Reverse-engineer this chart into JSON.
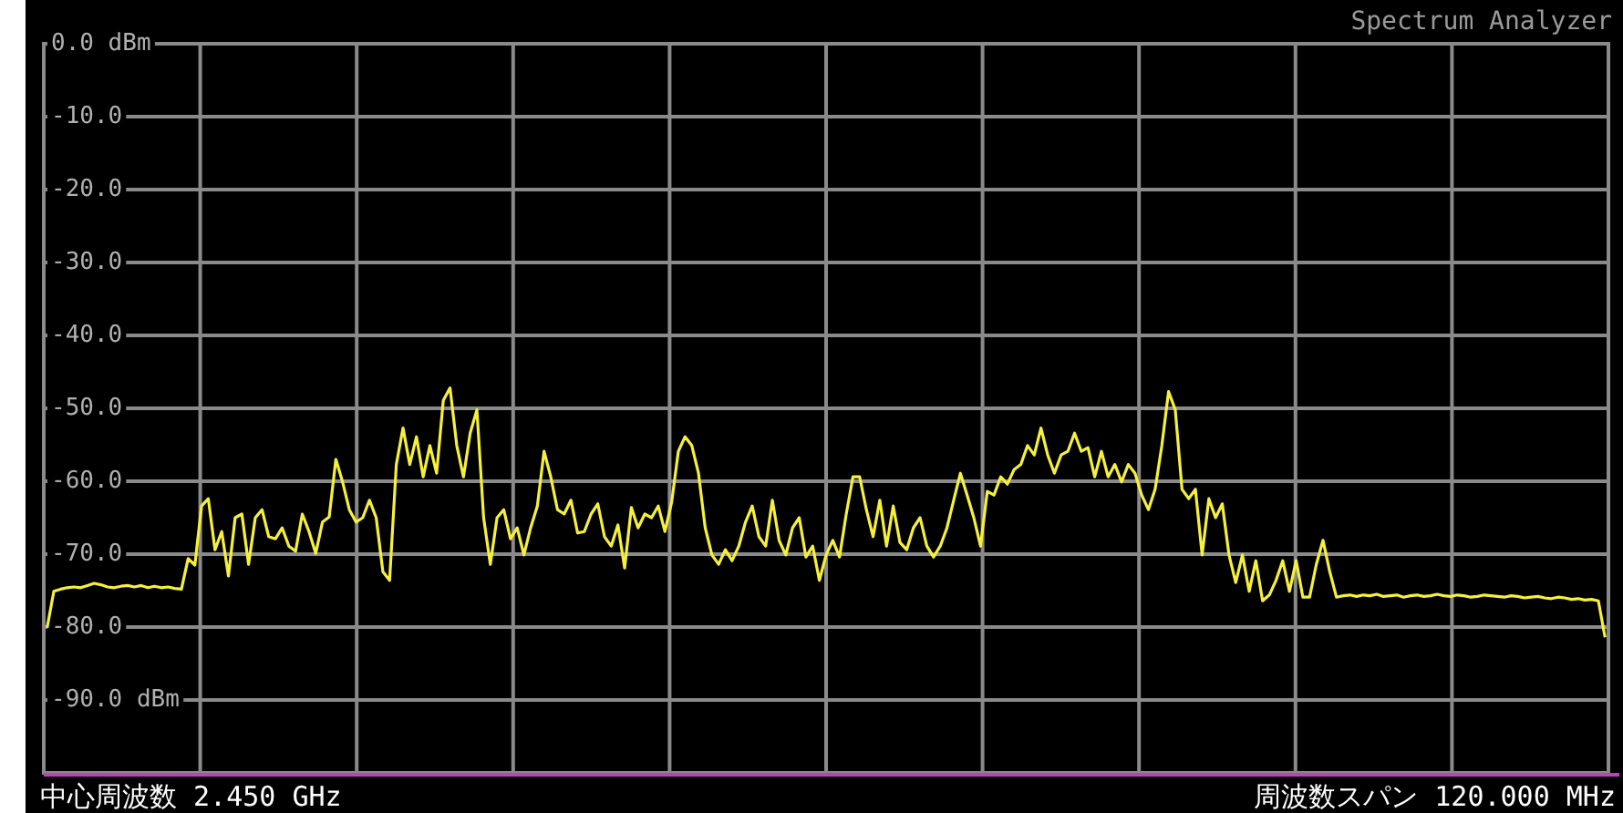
{
  "chart_data": {
    "type": "line",
    "title": "Spectrum Analyzer",
    "annotations": [
      "中心周波数 2.450 GHz",
      "周波数スパン 120.000 MHz"
    ],
    "categories": [
      null,
      null,
      null,
      null,
      null,
      null,
      null,
      null,
      null,
      null,
      null,
      null,
      null,
      null,
      null,
      null,
      null,
      null,
      null,
      null,
      null,
      null,
      null,
      null,
      null,
      null,
      null,
      null,
      null,
      null,
      null,
      null,
      null,
      null,
      null,
      null,
      null,
      null,
      null,
      null,
      null,
      null,
      null,
      null,
      null,
      null,
      null,
      null,
      null,
      null,
      null,
      null,
      null,
      null,
      null,
      null,
      null,
      null,
      null,
      null,
      null,
      null,
      null,
      null,
      null,
      null,
      null,
      null,
      null,
      null,
      null,
      null,
      null,
      null,
      null,
      null,
      null,
      null,
      null,
      null,
      null,
      null,
      null,
      null,
      null,
      null,
      null,
      null,
      null,
      null,
      null,
      null,
      null,
      null,
      null,
      null,
      null,
      null,
      null,
      null,
      null,
      null,
      null,
      null,
      null,
      null,
      null,
      null,
      null,
      null,
      null,
      null,
      null,
      null,
      null,
      null,
      null,
      null,
      null,
      null,
      null,
      null,
      null,
      null,
      null,
      null,
      null,
      null,
      null,
      null,
      null,
      null,
      null,
      null,
      null,
      null,
      null,
      null,
      null,
      null,
      null,
      null,
      null,
      null,
      null,
      null,
      null,
      null,
      null,
      null,
      null,
      null,
      null,
      null,
      null,
      null,
      null,
      null,
      null,
      null,
      null,
      null,
      null,
      null,
      null,
      null,
      null,
      null,
      null,
      null,
      null,
      null,
      null,
      null,
      null,
      null,
      null,
      null,
      null,
      null,
      null,
      null,
      null,
      null,
      null,
      null,
      null,
      null,
      null,
      null,
      null,
      null,
      null,
      null,
      null,
      null,
      null,
      null,
      null,
      null,
      null,
      null,
      null,
      null,
      null,
      null,
      null,
      null,
      null,
      null,
      null,
      null,
      null,
      null,
      null,
      null,
      null,
      null,
      null,
      null,
      null,
      null,
      null,
      null,
      null,
      null,
      null,
      null,
      null,
      null,
      null,
      null,
      null
    ],
    "series": [
      {
        "color": "#f5f03c",
        "values": [
          -80.1,
          -75.1,
          -74.8,
          -74.6,
          -74.5,
          -74.6,
          -74.3,
          -74.0,
          -74.2,
          -74.5,
          -74.6,
          -74.4,
          -74.3,
          -74.5,
          -74.3,
          -74.6,
          -74.4,
          -74.6,
          -74.5,
          -74.7,
          -74.8,
          -70.6,
          -71.5,
          -63.4,
          -62.4,
          -69.4,
          -66.9,
          -73.0,
          -65.0,
          -64.5,
          -71.4,
          -65.0,
          -63.9,
          -67.6,
          -67.9,
          -66.4,
          -68.9,
          -69.6,
          -64.5,
          -66.9,
          -69.9,
          -65.6,
          -64.9,
          -57.0,
          -60.1,
          -63.9,
          -65.6,
          -65.0,
          -62.6,
          -65.0,
          -72.4,
          -73.6,
          -57.7,
          -52.7,
          -57.7,
          -53.9,
          -59.4,
          -55.1,
          -58.9,
          -48.9,
          -47.2,
          -55.1,
          -59.4,
          -53.4,
          -50.2,
          -65.0,
          -71.4,
          -65.0,
          -63.9,
          -67.9,
          -66.4,
          -70.1,
          -66.4,
          -63.4,
          -55.9,
          -59.4,
          -63.9,
          -64.5,
          -62.6,
          -67.1,
          -66.9,
          -64.5,
          -63.1,
          -67.6,
          -68.9,
          -66.0,
          -71.9,
          -63.6,
          -66.4,
          -64.5,
          -65.0,
          -63.4,
          -66.9,
          -62.9,
          -55.9,
          -53.9,
          -55.1,
          -58.9,
          -66.4,
          -70.1,
          -71.4,
          -69.4,
          -70.9,
          -68.9,
          -65.6,
          -63.4,
          -67.6,
          -68.9,
          -62.6,
          -68.1,
          -70.1,
          -66.4,
          -65.0,
          -70.4,
          -68.9,
          -73.6,
          -70.1,
          -68.1,
          -70.4,
          -64.5,
          -59.4,
          -59.4,
          -63.9,
          -67.6,
          -62.6,
          -68.9,
          -63.4,
          -68.4,
          -69.4,
          -66.4,
          -65.0,
          -68.9,
          -70.4,
          -68.9,
          -66.4,
          -62.6,
          -58.9,
          -61.9,
          -65.0,
          -68.9,
          -61.4,
          -61.9,
          -59.4,
          -60.4,
          -58.4,
          -57.7,
          -55.1,
          -56.4,
          -52.7,
          -56.4,
          -58.9,
          -56.4,
          -55.9,
          -53.4,
          -55.9,
          -55.4,
          -59.4,
          -55.9,
          -59.4,
          -57.7,
          -60.1,
          -57.7,
          -58.9,
          -61.9,
          -63.9,
          -61.1,
          -55.1,
          -47.7,
          -50.2,
          -61.1,
          -62.4,
          -61.1,
          -70.1,
          -62.4,
          -65.0,
          -63.1,
          -70.1,
          -73.9,
          -70.1,
          -75.1,
          -70.9,
          -76.4,
          -75.6,
          -73.6,
          -70.9,
          -75.1,
          -70.9,
          -75.9,
          -75.9,
          -71.4,
          -68.1,
          -72.4,
          -75.9,
          -75.7,
          -75.6,
          -75.8,
          -75.6,
          -75.7,
          -75.5,
          -75.8,
          -75.7,
          -75.6,
          -75.9,
          -75.7,
          -75.6,
          -75.8,
          -75.7,
          -75.5,
          -75.7,
          -75.8,
          -75.6,
          -75.7,
          -75.9,
          -75.8,
          -75.6,
          -75.7,
          -75.8,
          -75.9,
          -75.7,
          -75.8,
          -76.0,
          -75.9,
          -75.8,
          -76.0,
          -76.1,
          -75.9,
          -76.0,
          -76.2,
          -76.1,
          -76.3,
          -76.2,
          -76.4,
          -81.4
        ]
      }
    ],
    "ylim": [
      -100,
      0
    ],
    "yticks": [
      {
        "value": 0,
        "label": "0.0 dBm"
      },
      {
        "value": -10,
        "label": "-10.0"
      },
      {
        "value": -20,
        "label": "-20.0"
      },
      {
        "value": -30,
        "label": "-30.0"
      },
      {
        "value": -40,
        "label": "-40.0"
      },
      {
        "value": -50,
        "label": "-50.0"
      },
      {
        "value": -60,
        "label": "-60.0"
      },
      {
        "value": -70,
        "label": "-70.0"
      },
      {
        "value": -80,
        "label": "-80.0"
      },
      {
        "value": -90,
        "label": "-90.0 dBm"
      },
      {
        "value": -100,
        "label": null
      }
    ],
    "grid": true
  }
}
